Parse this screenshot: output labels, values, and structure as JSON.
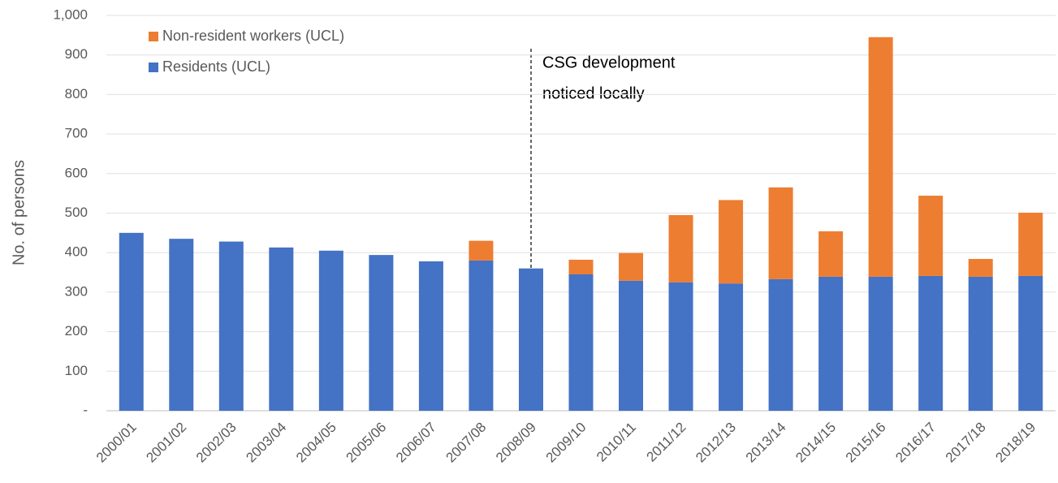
{
  "chart_data": {
    "type": "stacked_bar",
    "y_label": "No. of persons",
    "annotation": [
      "CSG development",
      "noticed locally"
    ],
    "categories": [
      "2000/01",
      "2001/02",
      "2002/03",
      "2003/04",
      "2004/05",
      "2005/06",
      "2006/07",
      "2007/08",
      "2008/09",
      "2009/10",
      "2010/11",
      "2011/12",
      "2012/13",
      "2013/14",
      "2014/15",
      "2015/16",
      "2016/17",
      "2017/18",
      "2018/19"
    ],
    "series": [
      {
        "name": "Residents (UCL)",
        "color": "#4472c4",
        "values": [
          450,
          435,
          428,
          413,
          405,
          394,
          378,
          380,
          360,
          345,
          329,
          325,
          322,
          333,
          339,
          339,
          341,
          339,
          341
        ]
      },
      {
        "name": "Non-resident workers (UCL)",
        "color": "#ed7d31",
        "values": [
          null,
          null,
          null,
          null,
          null,
          null,
          null,
          50,
          null,
          37,
          70,
          170,
          211,
          232,
          115,
          606,
          203,
          45,
          160
        ]
      }
    ],
    "ylim": [
      0,
      1000
    ],
    "yticks": [
      {
        "value": 0,
        "label": "-"
      },
      100,
      200,
      300,
      400,
      500,
      600,
      700,
      800,
      900,
      {
        "value": 1000,
        "label": "1,000"
      }
    ],
    "grid": true,
    "legend": "upper left"
  }
}
